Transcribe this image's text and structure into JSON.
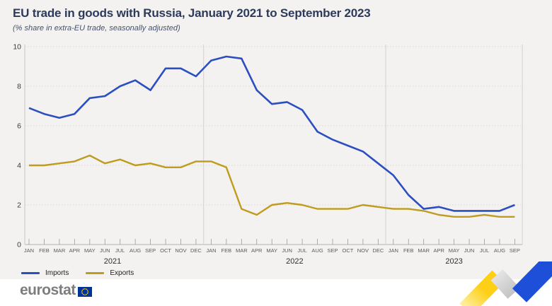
{
  "header": {
    "title": "EU trade in goods with Russia, January 2021 to September 2023",
    "subtitle": "(% share in extra-EU trade, seasonally adjusted)"
  },
  "chart_data": {
    "type": "line",
    "title": "EU trade in goods with Russia, January 2021 to September 2023",
    "subtitle": "(% share in extra-EU trade, seasonally adjusted)",
    "ylabel": "% share in extra-EU trade",
    "ylim": [
      0,
      10
    ],
    "yticks": [
      0,
      2,
      4,
      6,
      8,
      10
    ],
    "grid": "dashed horizontal",
    "legend_position": "bottom-left",
    "groups": [
      {
        "year": "2021",
        "months": [
          "JAN",
          "FEB",
          "MAR",
          "APR",
          "MAY",
          "JUN",
          "JUL",
          "AUG",
          "SEP",
          "OCT",
          "NOV",
          "DEC"
        ]
      },
      {
        "year": "2022",
        "months": [
          "JAN",
          "FEB",
          "MAR",
          "APR",
          "MAY",
          "JUN",
          "JUL",
          "AUG",
          "SEP",
          "OCT",
          "NOV",
          "DEC"
        ]
      },
      {
        "year": "2023",
        "months": [
          "JAN",
          "FEB",
          "MAR",
          "APR",
          "MAY",
          "JUN",
          "JUL",
          "AUG",
          "SEP"
        ]
      }
    ],
    "series": [
      {
        "name": "Imports",
        "color": "#2b4ec0",
        "values": [
          6.9,
          6.6,
          6.4,
          6.6,
          7.4,
          7.5,
          8.0,
          8.3,
          7.8,
          8.9,
          8.9,
          8.5,
          9.3,
          9.5,
          9.4,
          7.8,
          7.1,
          7.2,
          6.8,
          5.7,
          5.3,
          5.0,
          4.7,
          4.1,
          3.5,
          2.5,
          1.8,
          1.9,
          1.7,
          1.7,
          1.7,
          1.7,
          2.0
        ]
      },
      {
        "name": "Exports",
        "color": "#bf9c1e",
        "values": [
          4.0,
          4.0,
          4.1,
          4.2,
          4.5,
          4.1,
          4.3,
          4.0,
          4.1,
          3.9,
          3.9,
          4.2,
          4.2,
          3.9,
          1.8,
          1.5,
          2.0,
          2.1,
          2.0,
          1.8,
          1.8,
          1.8,
          2.0,
          1.9,
          1.8,
          1.8,
          1.7,
          1.5,
          1.4,
          1.4,
          1.5,
          1.4,
          1.4
        ]
      }
    ]
  },
  "footer": {
    "logo_text": "eurostat"
  },
  "colors": {
    "background": "#f3f2f0",
    "title": "#2c3a5c",
    "imports_line": "#2b4ec0",
    "exports_line": "#bf9c1e",
    "eu_flag_blue": "#003399",
    "eu_flag_stars": "#ffcc00",
    "arrow_yellow": "#fdd017",
    "arrow_gray": "#c9c9c9",
    "arrow_blue": "#1d4fd8"
  }
}
